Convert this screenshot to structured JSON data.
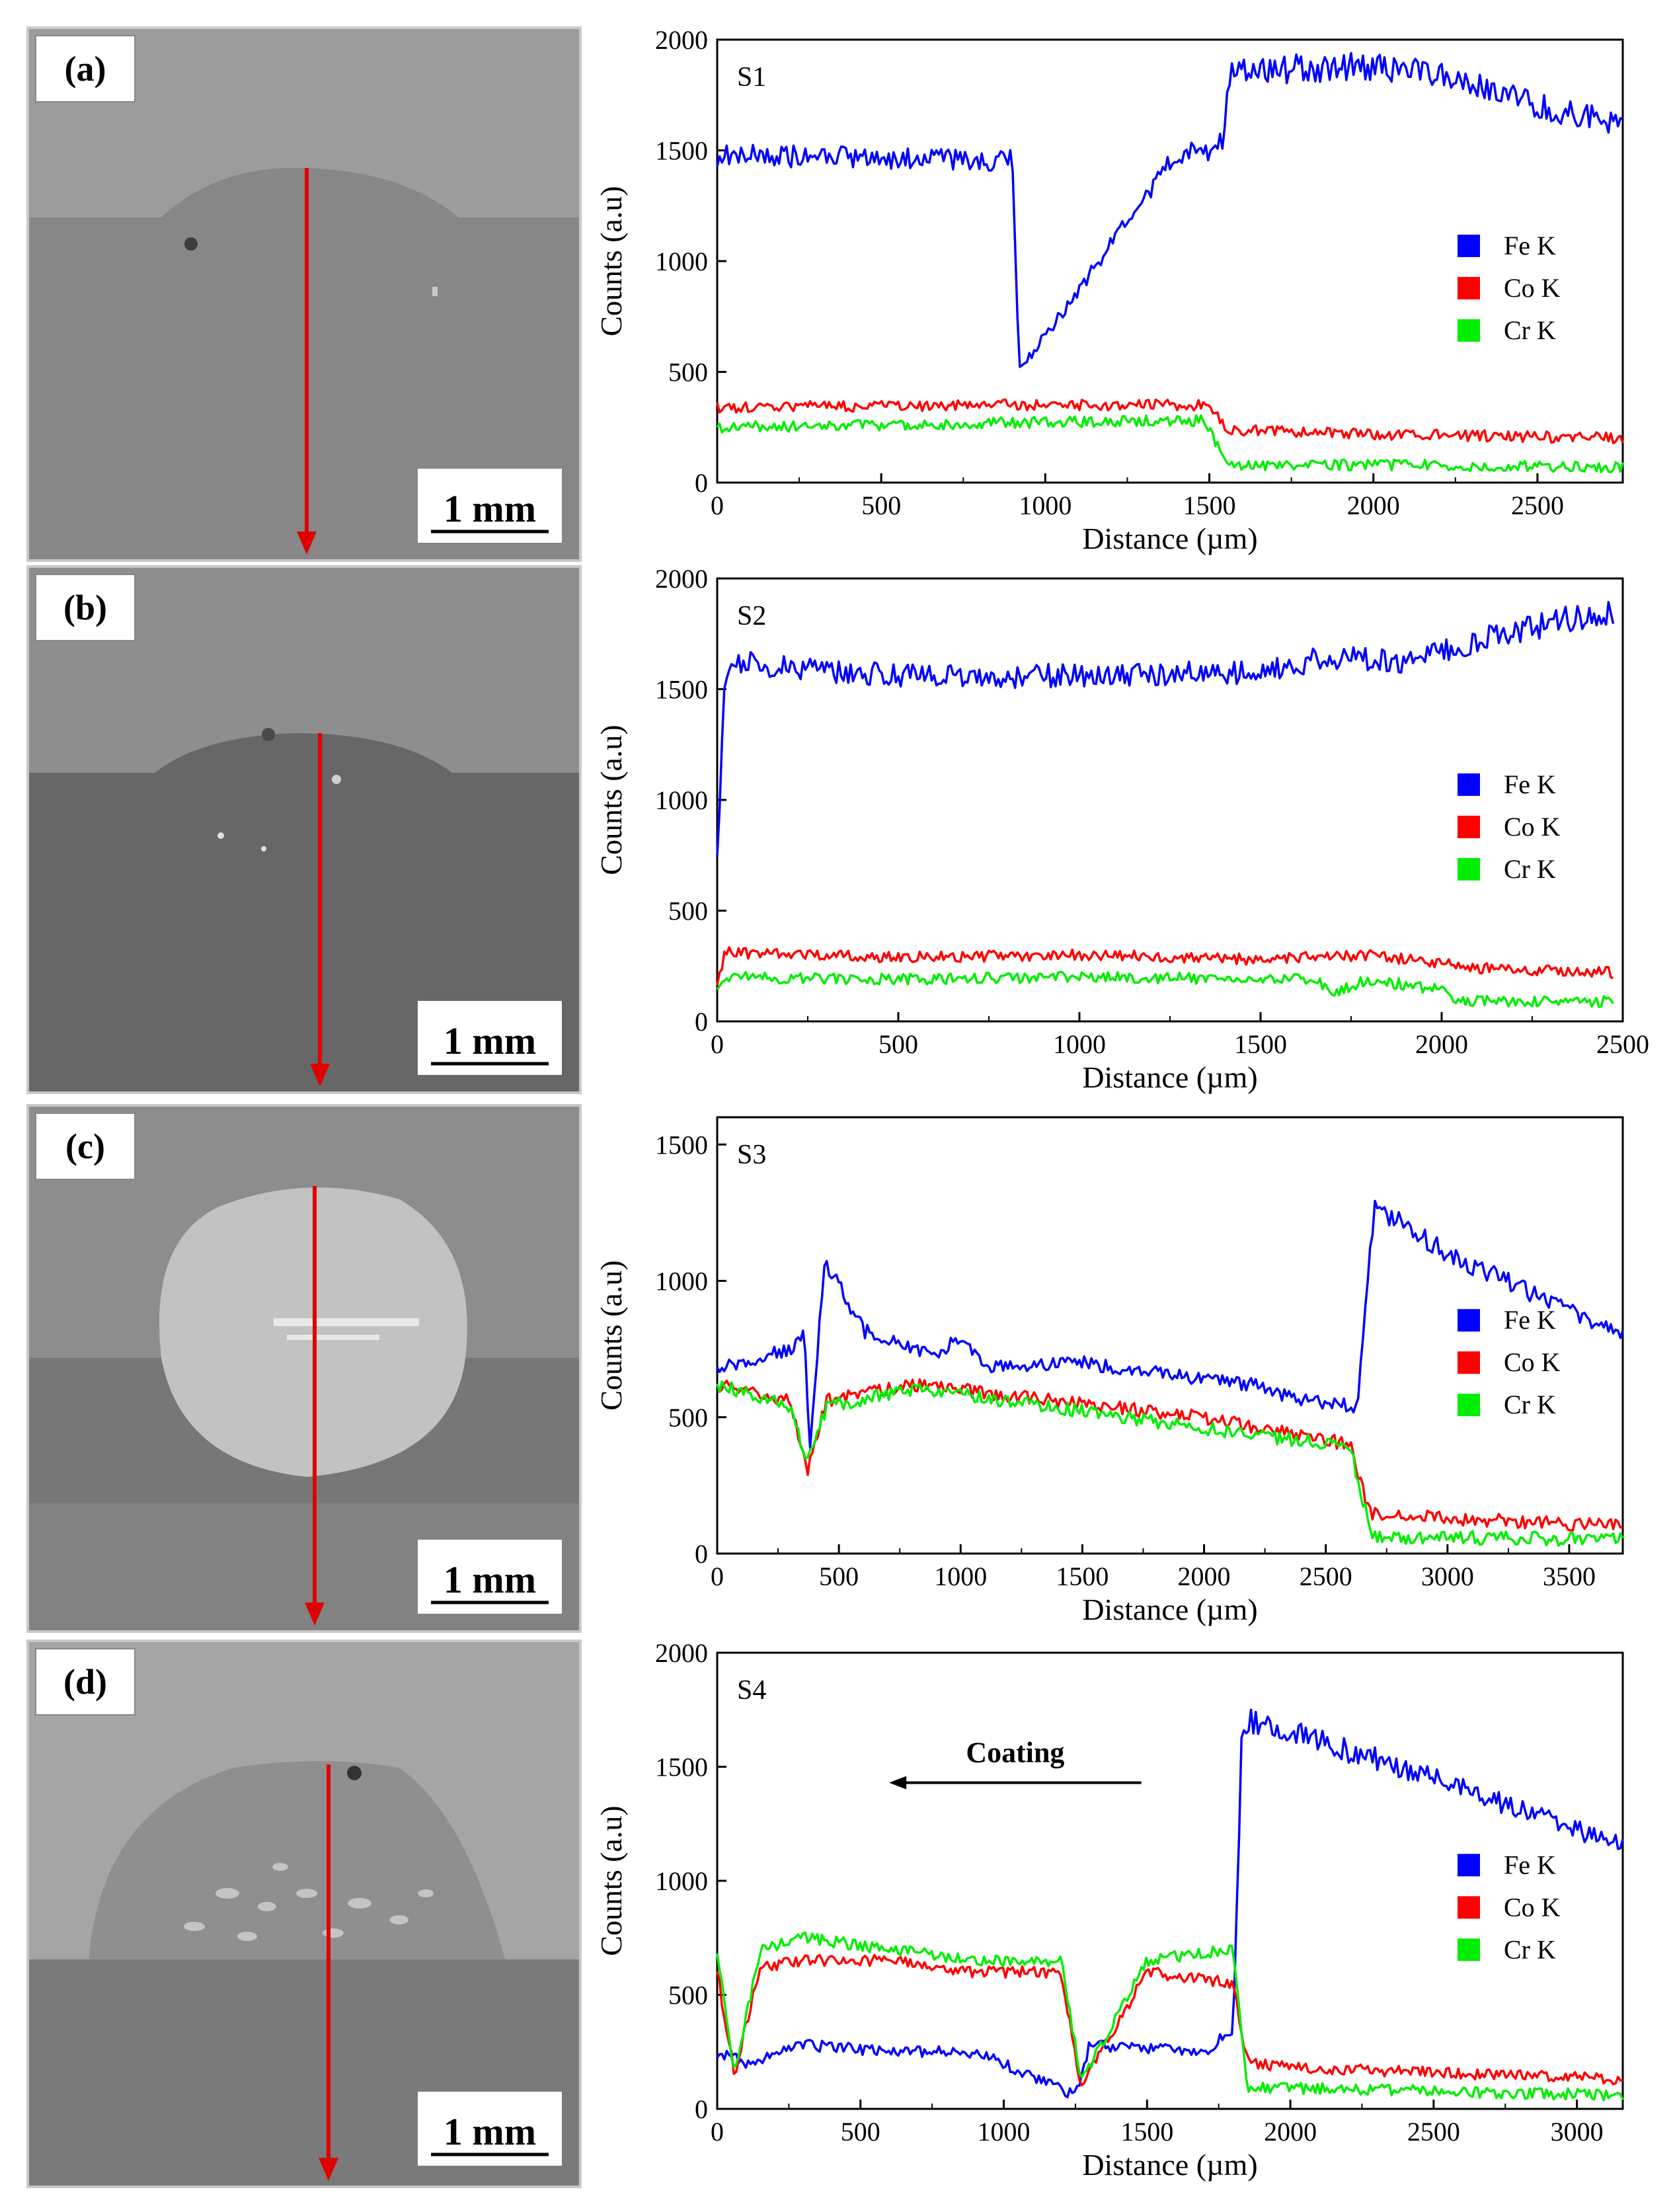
{
  "panels": [
    {
      "label": "(a)",
      "scale_bar": "1 mm",
      "chart_data": {
        "type": "line",
        "series_label": "S1",
        "xlabel": "Distance (µm)",
        "ylabel": "Counts (a.u)",
        "xlim": [
          0,
          2760
        ],
        "ylim": [
          0,
          2000
        ],
        "xticks": [
          0,
          500,
          1000,
          1500,
          2000,
          2500
        ],
        "yticks": [
          0,
          500,
          1000,
          1500,
          2000
        ],
        "legend_position": "right",
        "series": [
          {
            "name": "Fe K",
            "color": "#0000ff",
            "x": [
              0,
              300,
              900,
              920,
              1400,
              1500,
              1540,
              1560,
              1900,
              2200,
              2500,
              2760
            ],
            "y": [
              1480,
              1470,
              1450,
              500,
              1480,
              1500,
              1560,
              1850,
              1880,
              1850,
              1700,
              1620
            ]
          },
          {
            "name": "Co K",
            "color": "#ff0000",
            "x": [
              0,
              900,
              1500,
              1560,
              2000,
              2760
            ],
            "y": [
              340,
              350,
              350,
              240,
              220,
              200
            ]
          },
          {
            "name": "Cr K",
            "color": "#00ee00",
            "x": [
              0,
              900,
              1480,
              1560,
              2000,
              2760
            ],
            "y": [
              250,
              270,
              280,
              80,
              80,
              70
            ]
          }
        ],
        "annotations": []
      }
    },
    {
      "label": "(b)",
      "scale_bar": "1 mm",
      "chart_data": {
        "type": "line",
        "series_label": "S2",
        "xlabel": "Distance (µm)",
        "ylabel": "Counts (a.u)",
        "xlim": [
          0,
          2500
        ],
        "ylim": [
          0,
          2000
        ],
        "xticks": [
          0,
          500,
          1000,
          1500,
          2000,
          2500
        ],
        "yticks": [
          0,
          500,
          1000,
          1500,
          2000
        ],
        "legend_position": "right",
        "series": [
          {
            "name": "Fe K",
            "color": "#0000ff",
            "x": [
              0,
              20,
              60,
              500,
              1000,
              1500,
              1700,
              1900,
              2100,
              2300,
              2480
            ],
            "y": [
              730,
              1500,
              1620,
              1560,
              1560,
              1580,
              1650,
              1620,
              1720,
              1800,
              1850
            ]
          },
          {
            "name": "Co K",
            "color": "#ff0000",
            "x": [
              0,
              20,
              500,
              1000,
              1500,
              1800,
              2100,
              2480
            ],
            "y": [
              150,
              310,
              290,
              300,
              280,
              300,
              240,
              220
            ]
          },
          {
            "name": "Cr K",
            "color": "#00ee00",
            "x": [
              0,
              20,
              500,
              1000,
              1650,
              1700,
              1800,
              2000,
              2050,
              2480
            ],
            "y": [
              120,
              200,
              190,
              200,
              190,
              130,
              190,
              140,
              90,
              90
            ]
          }
        ],
        "annotations": []
      }
    },
    {
      "label": "(c)",
      "scale_bar": "1 mm",
      "chart_data": {
        "type": "line",
        "series_label": "S3",
        "xlabel": "Distance (µm)",
        "ylabel": "Counts (a.u)",
        "xlim": [
          0,
          3720
        ],
        "ylim": [
          0,
          1600
        ],
        "xticks": [
          0,
          500,
          1000,
          1500,
          2000,
          2500,
          3000,
          3500
        ],
        "yticks": [
          0,
          500,
          1000,
          1500
        ],
        "legend_position": "right",
        "series": [
          {
            "name": "Fe K",
            "color": "#0000ff",
            "x": [
              0,
              300,
              360,
              380,
              440,
              600,
              900,
              980,
              1100,
              1500,
              2000,
              2200,
              2400,
              2630,
              2700,
              3000,
              3720
            ],
            "y": [
              680,
              750,
              800,
              350,
              1080,
              820,
              720,
              800,
              680,
              700,
              640,
              620,
              560,
              540,
              1270,
              1100,
              800
            ]
          },
          {
            "name": "Co K",
            "color": "#ff0000",
            "x": [
              0,
              300,
              370,
              450,
              800,
              1200,
              2000,
              2600,
              2680,
              3000,
              3720
            ],
            "y": [
              620,
              560,
              300,
              560,
              620,
              580,
              500,
              400,
              150,
              130,
              100
            ]
          },
          {
            "name": "Cr K",
            "color": "#00ee00",
            "x": [
              0,
              300,
              370,
              450,
              800,
              1200,
              2000,
              2600,
              2690,
              3000,
              3720
            ],
            "y": [
              620,
              540,
              330,
              540,
              600,
              560,
              460,
              390,
              60,
              60,
              50
            ]
          }
        ],
        "annotations": []
      }
    },
    {
      "label": "(d)",
      "scale_bar": "1 mm",
      "chart_data": {
        "type": "line",
        "series_label": "S4",
        "xlabel": "Distance (µm)",
        "ylabel": "Counts (a.u)",
        "xlim": [
          0,
          3160
        ],
        "ylim": [
          0,
          2000
        ],
        "xticks": [
          0,
          500,
          1000,
          1500,
          2000,
          2500,
          3000
        ],
        "yticks": [
          0,
          500,
          1000,
          1500,
          2000
        ],
        "legend_position": "right",
        "series": [
          {
            "name": "Fe K",
            "color": "#0000ff",
            "x": [
              0,
              100,
              300,
              600,
              900,
              1250,
              1300,
              1700,
              1800,
              1830,
              1860,
              2000,
              2500,
              3160
            ],
            "y": [
              250,
              200,
              280,
              250,
              250,
              60,
              280,
              250,
              350,
              1600,
              1700,
              1650,
              1450,
              1150
            ]
          },
          {
            "name": "Co K",
            "color": "#ff0000",
            "x": [
              0,
              60,
              150,
              300,
              600,
              900,
              1200,
              1270,
              1500,
              1800,
              1850,
              2000,
              3160
            ],
            "y": [
              600,
              150,
              620,
              650,
              650,
              600,
              600,
              100,
              600,
              550,
              200,
              180,
              130
            ]
          },
          {
            "name": "Cr K",
            "color": "#00ee00",
            "x": [
              0,
              60,
              150,
              300,
              600,
              900,
              1200,
              1270,
              1500,
              1800,
              1850,
              2000,
              3160
            ],
            "y": [
              700,
              150,
              700,
              750,
              700,
              650,
              650,
              120,
              650,
              700,
              100,
              90,
              60
            ]
          }
        ],
        "annotations": [
          {
            "text": "Coating",
            "arrow_from_x": 1480,
            "arrow_to_x": 600,
            "arrow_y": 1430,
            "text_y": 1520
          }
        ]
      }
    }
  ]
}
